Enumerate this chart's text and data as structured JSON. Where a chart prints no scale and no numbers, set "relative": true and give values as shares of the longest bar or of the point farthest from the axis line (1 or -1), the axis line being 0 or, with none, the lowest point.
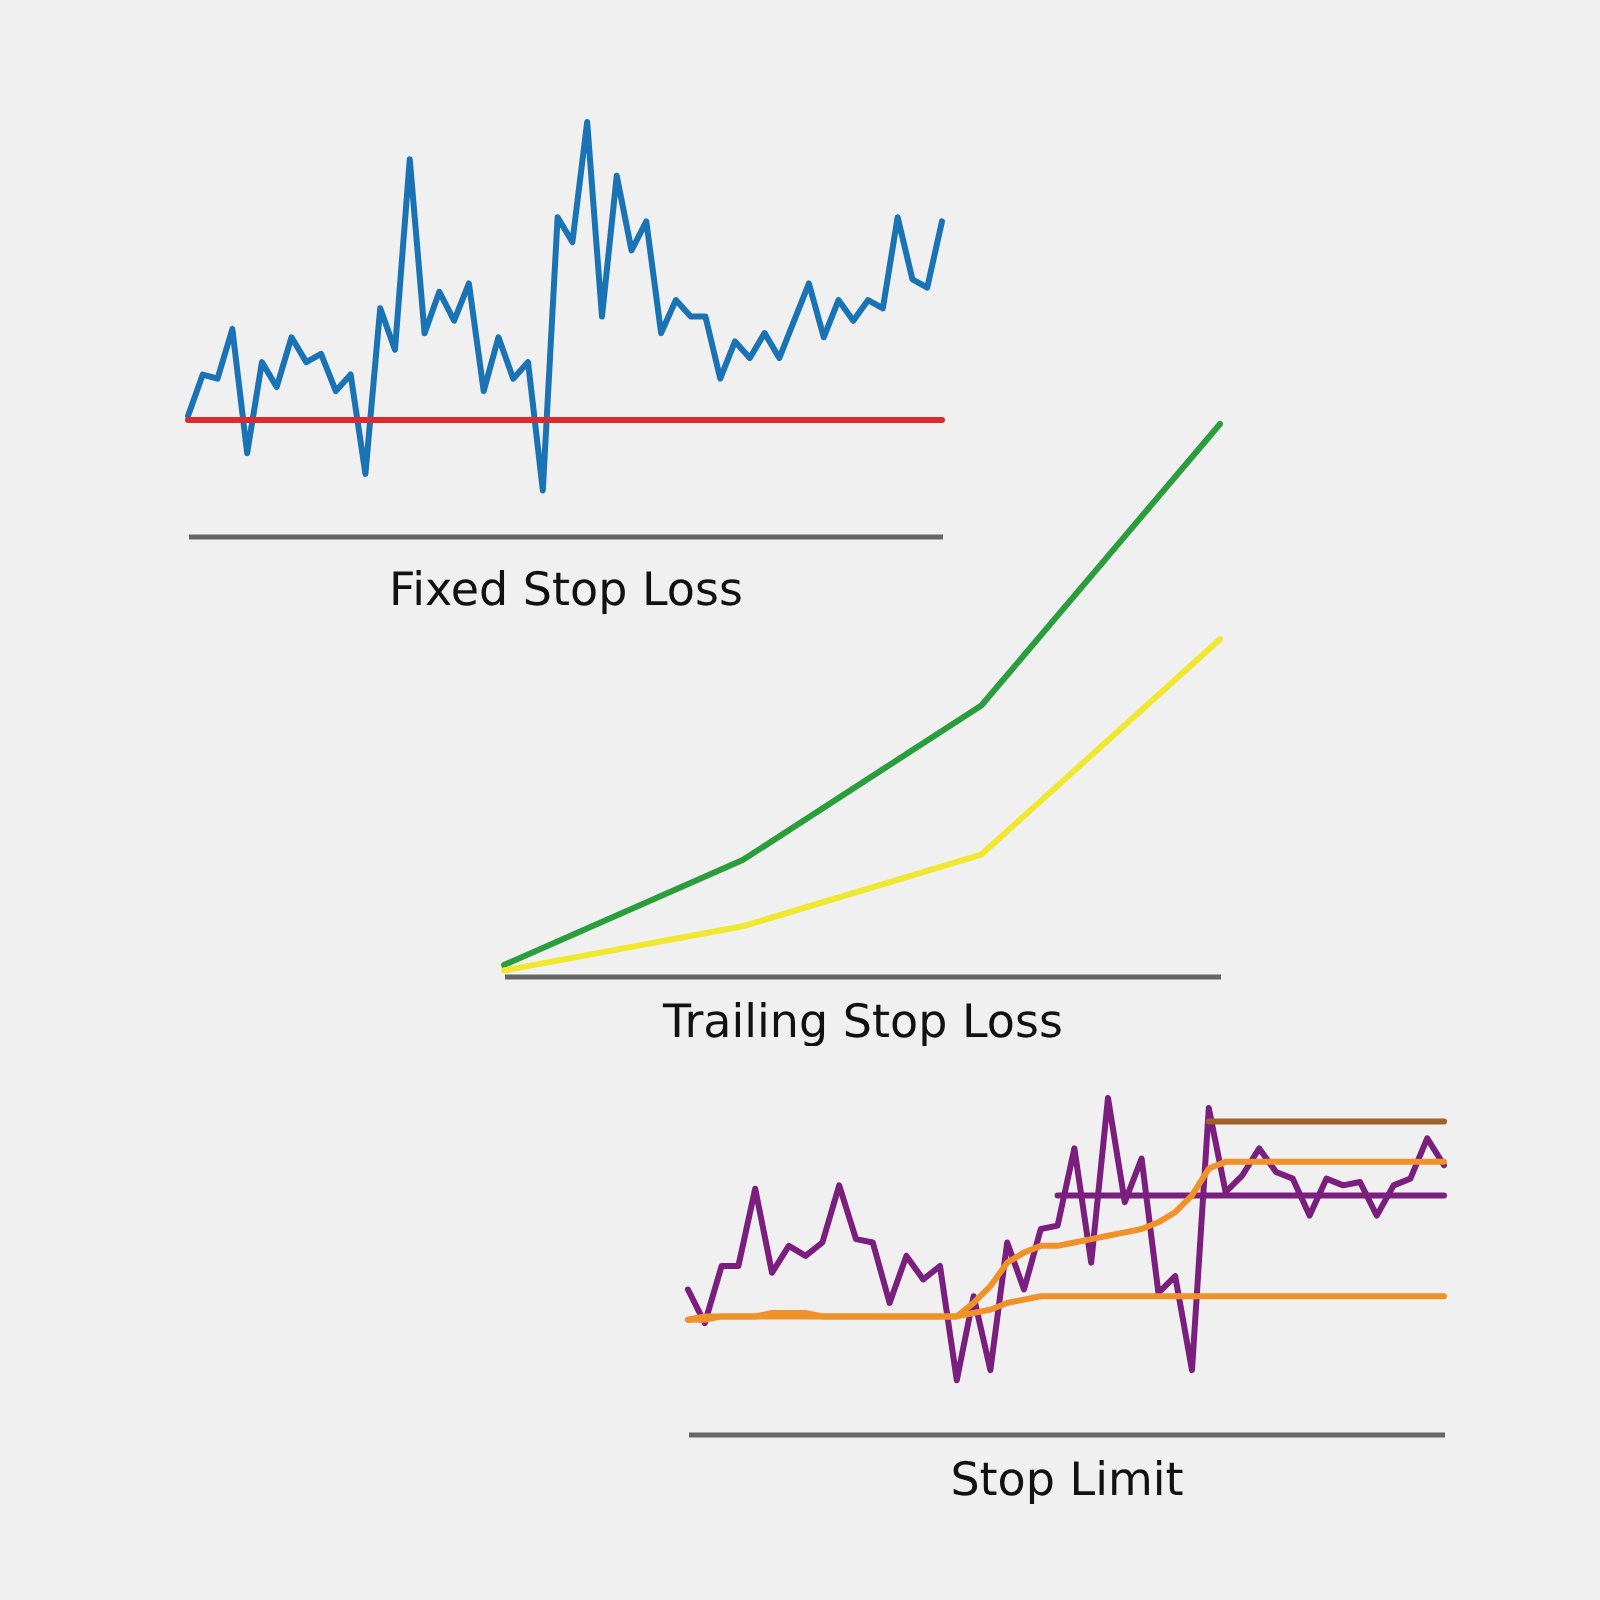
{
  "chart_data": [
    {
      "type": "line",
      "xlabel": "Fixed Stop Loss",
      "relative": true,
      "tick_labels": false,
      "line_style": "solid",
      "categories": [
        null,
        null,
        null,
        null,
        null,
        null,
        null,
        null,
        null,
        null,
        null,
        null,
        null,
        null,
        null,
        null,
        null,
        null,
        null,
        null,
        null,
        null,
        null,
        null,
        null,
        null,
        null,
        null,
        null,
        null,
        null,
        null,
        null,
        null,
        null,
        null,
        null,
        null,
        null,
        null,
        null,
        null,
        null,
        null,
        null,
        null,
        null,
        null,
        null,
        null,
        null,
        null
      ],
      "series": [
        {
          "color": "#1a73b5",
          "values": [
            0.29,
            0.39,
            0.38,
            0.5,
            0.2,
            0.42,
            0.36,
            0.48,
            0.42,
            0.44,
            0.35,
            0.39,
            0.15,
            0.55,
            0.45,
            0.91,
            0.49,
            0.59,
            0.52,
            0.61,
            0.35,
            0.48,
            0.38,
            0.42,
            0.11,
            0.77,
            0.71,
            1.0,
            0.53,
            0.87,
            0.69,
            0.76,
            0.49,
            0.57,
            0.53,
            0.53,
            0.38,
            0.47,
            0.43,
            0.49,
            0.43,
            0.52,
            0.61,
            0.48,
            0.57,
            0.52,
            0.57,
            0.55,
            0.77,
            0.62,
            0.6,
            0.76
          ]
        },
        {
          "color": "#dd2a2f",
          "values": [
            0.28,
            0.28,
            0.28,
            0.28,
            0.28,
            0.28,
            0.28,
            0.28,
            0.28,
            0.28,
            0.28,
            0.28,
            0.28,
            0.28,
            0.28,
            0.28,
            0.28,
            0.28,
            0.28,
            0.28,
            0.28,
            0.28,
            0.28,
            0.28,
            0.28,
            0.28,
            0.28,
            0.28,
            0.28,
            0.28,
            0.28,
            0.28,
            0.28,
            0.28,
            0.28,
            0.28,
            0.28,
            0.28,
            0.28,
            0.28,
            0.28,
            0.28,
            0.28,
            0.28,
            0.28,
            0.28,
            0.28,
            0.28,
            0.28,
            0.28,
            0.28,
            0.28
          ]
        }
      ]
    },
    {
      "type": "line",
      "xlabel": "Trailing Stop Loss",
      "relative": true,
      "tick_labels": false,
      "line_style": "solid",
      "categories": [
        null,
        null,
        null,
        null
      ],
      "series": [
        {
          "color": "#2a9d3c",
          "values": [
            0.02,
            0.21,
            0.49,
            1.0
          ]
        },
        {
          "color": "#f0e830",
          "values": [
            0.01,
            0.09,
            0.22,
            0.61
          ]
        }
      ]
    },
    {
      "type": "line",
      "xlabel": "Stop Limit",
      "relative": true,
      "tick_labels": false,
      "line_style": "solid",
      "categories": [
        null,
        null,
        null,
        null,
        null,
        null,
        null,
        null,
        null,
        null,
        null,
        null,
        null,
        null,
        null,
        null,
        null,
        null,
        null,
        null,
        null,
        null,
        null,
        null,
        null,
        null,
        null,
        null,
        null,
        null,
        null,
        null,
        null,
        null,
        null,
        null,
        null,
        null,
        null,
        null,
        null,
        null,
        null,
        null,
        null,
        null
      ],
      "series": [
        {
          "color": "#7a1f7d",
          "values": [
            0.43,
            0.33,
            0.5,
            0.5,
            0.73,
            0.48,
            0.56,
            0.53,
            0.57,
            0.74,
            0.58,
            0.57,
            0.39,
            0.53,
            0.46,
            0.5,
            0.16,
            0.41,
            0.19,
            0.57,
            0.43,
            0.61,
            0.62,
            0.85,
            0.51,
            1.0,
            0.69,
            0.82,
            0.42,
            0.47,
            0.19,
            0.97,
            0.72,
            0.77,
            0.85,
            0.78,
            0.76,
            0.65,
            0.76,
            0.74,
            0.75,
            0.65,
            0.74,
            0.76,
            0.88,
            0.8
          ]
        },
        {
          "color": "#7a1f7d",
          "values": [
            null,
            null,
            null,
            null,
            null,
            null,
            null,
            null,
            null,
            null,
            null,
            null,
            null,
            null,
            null,
            null,
            null,
            null,
            null,
            null,
            null,
            null,
            0.71,
            0.71,
            0.71,
            0.71,
            0.71,
            0.71,
            0.71,
            0.71,
            0.71,
            0.71,
            0.71,
            0.71,
            0.71,
            0.71,
            0.71,
            0.71,
            0.71,
            0.71,
            0.71,
            0.71,
            0.71,
            0.71,
            0.71,
            0.71
          ]
        },
        {
          "color": "#a0602a",
          "values": [
            null,
            null,
            null,
            null,
            null,
            null,
            null,
            null,
            null,
            null,
            null,
            null,
            null,
            null,
            null,
            null,
            null,
            null,
            null,
            null,
            null,
            null,
            null,
            null,
            null,
            null,
            null,
            null,
            null,
            null,
            null,
            0.93,
            0.93,
            0.93,
            0.93,
            0.93,
            0.93,
            0.93,
            0.93,
            0.93,
            0.93,
            0.93,
            0.93,
            0.93,
            0.93,
            0.93
          ]
        },
        {
          "color": "#f0922a",
          "values": [
            0.34,
            0.34,
            0.35,
            0.35,
            0.35,
            0.36,
            0.36,
            0.36,
            0.35,
            0.35,
            0.35,
            0.35,
            0.35,
            0.35,
            0.35,
            0.35,
            0.35,
            0.36,
            0.37,
            0.39,
            0.4,
            0.41,
            0.41,
            0.41,
            0.41,
            0.41,
            0.41,
            0.41,
            0.41,
            0.41,
            0.41,
            0.41,
            0.41,
            0.41,
            0.41,
            0.41,
            0.41,
            0.41,
            0.41,
            0.41,
            0.41,
            0.41,
            0.41,
            0.41,
            0.41,
            0.41
          ]
        },
        {
          "color": "#f0922a",
          "values": [
            0.34,
            0.35,
            0.35,
            0.35,
            0.35,
            0.35,
            0.35,
            0.35,
            0.35,
            0.35,
            0.35,
            0.35,
            0.35,
            0.35,
            0.35,
            0.35,
            0.35,
            0.39,
            0.44,
            0.51,
            0.54,
            0.56,
            0.56,
            0.57,
            0.58,
            0.59,
            0.6,
            0.61,
            0.63,
            0.66,
            0.71,
            0.79,
            0.81,
            0.81,
            0.81,
            0.81,
            0.81,
            0.81,
            0.81,
            0.81,
            0.81,
            0.81,
            0.81,
            0.81,
            0.81,
            0.81
          ]
        }
      ]
    }
  ]
}
